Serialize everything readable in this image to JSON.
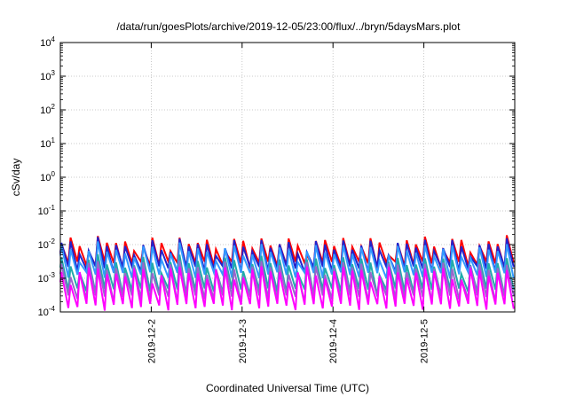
{
  "chart_data": {
    "type": "line",
    "title": "/data/run/goesPlots/archive/2019-12-05/23:00/flux/../bryn/5daysMars.plot",
    "xlabel": "Coordinated Universal Time (UTC)",
    "ylabel": "cSv/day",
    "yscale": "log",
    "ylim": [
      0.0001,
      10000
    ],
    "xlim_days": [
      1.0,
      6.0
    ],
    "x_ticks": [
      {
        "label": "2019-12-2",
        "day": 2
      },
      {
        "label": "2019-12-3",
        "day": 3
      },
      {
        "label": "2019-12-4",
        "day": 4
      },
      {
        "label": "2019-12-5",
        "day": 5
      }
    ],
    "y_ticks": [
      {
        "base": "10",
        "exp": "-4",
        "value": 0.0001
      },
      {
        "base": "10",
        "exp": "-3",
        "value": 0.001
      },
      {
        "base": "10",
        "exp": "-2",
        "value": 0.01
      },
      {
        "base": "10",
        "exp": "-1",
        "value": 0.1
      },
      {
        "base": "10",
        "exp": "0",
        "value": 1
      },
      {
        "base": "10",
        "exp": "1",
        "value": 10
      },
      {
        "base": "10",
        "exp": "2",
        "value": 100
      },
      {
        "base": "10",
        "exp": "3",
        "value": 1000
      },
      {
        "base": "10",
        "exp": "4",
        "value": 10000
      }
    ],
    "grid": true,
    "legend": "none",
    "sawtooth_period_days": 0.1,
    "series": [
      {
        "color": "#ff0000",
        "peak": 0.013,
        "trough": 0.0025
      },
      {
        "color": "#2222cc",
        "peak": 0.011,
        "trough": 0.0018
      },
      {
        "color": "#3399ff",
        "peak": 0.008,
        "trough": 0.0012
      },
      {
        "color": "#22aaaa",
        "peak": 0.0035,
        "trough": 0.0004
      },
      {
        "color": "#9966cc",
        "peak": 0.0025,
        "trough": 0.00025
      },
      {
        "color": "#ff00ff",
        "peak": 0.0018,
        "trough": 0.00014
      }
    ]
  }
}
